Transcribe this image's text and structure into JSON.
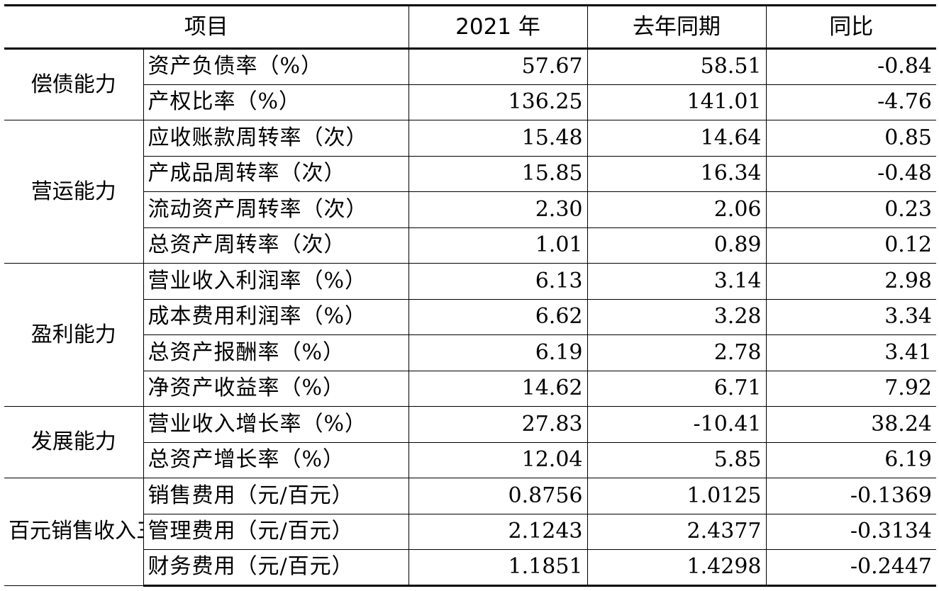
{
  "header": {
    "item": "项目",
    "current": "2021 年",
    "previous": "去年同期",
    "yoy": "同比"
  },
  "groups": [
    {
      "category": "偿债能力",
      "rows": [
        {
          "indicator": "资产负债率（%）",
          "current": "57.67",
          "previous": "58.51",
          "yoy": "-0.84"
        },
        {
          "indicator": "产权比率（%）",
          "current": "136.25",
          "previous": "141.01",
          "yoy": "-4.76"
        }
      ]
    },
    {
      "category": "营运能力",
      "rows": [
        {
          "indicator": "应收账款周转率（次）",
          "current": "15.48",
          "previous": "14.64",
          "yoy": "0.85"
        },
        {
          "indicator": "产成品周转率（次）",
          "current": "15.85",
          "previous": "16.34",
          "yoy": "-0.48"
        },
        {
          "indicator": "流动资产周转率（次）",
          "current": "2.30",
          "previous": "2.06",
          "yoy": "0.23"
        },
        {
          "indicator": "总资产周转率（次）",
          "current": "1.01",
          "previous": "0.89",
          "yoy": "0.12"
        }
      ]
    },
    {
      "category": "盈利能力",
      "rows": [
        {
          "indicator": "营业收入利润率（%）",
          "current": "6.13",
          "previous": "3.14",
          "yoy": "2.98"
        },
        {
          "indicator": "成本费用利润率（%）",
          "current": "6.62",
          "previous": "3.28",
          "yoy": "3.34"
        },
        {
          "indicator": "总资产报酬率（%）",
          "current": "6.19",
          "previous": "2.78",
          "yoy": "3.41"
        },
        {
          "indicator": "净资产收益率（%）",
          "current": "14.62",
          "previous": "6.71",
          "yoy": "7.92"
        }
      ]
    },
    {
      "category": "发展能力",
      "rows": [
        {
          "indicator": "营业收入增长率（%）",
          "current": "27.83",
          "previous": "-10.41",
          "yoy": "38.24"
        },
        {
          "indicator": "总资产增长率（%）",
          "current": "12.04",
          "previous": "5.85",
          "yoy": "6.19"
        }
      ]
    },
    {
      "category": "百元销售收入三项费用",
      "rows": [
        {
          "indicator": "销售费用（元/百元）",
          "current": "0.8756",
          "previous": "1.0125",
          "yoy": "-0.1369"
        },
        {
          "indicator": "管理费用（元/百元）",
          "current": "2.1243",
          "previous": "2.4377",
          "yoy": "-0.3134"
        },
        {
          "indicator": "财务费用（元/百元）",
          "current": "1.1851",
          "previous": "1.4298",
          "yoy": "-0.2447"
        }
      ]
    }
  ]
}
